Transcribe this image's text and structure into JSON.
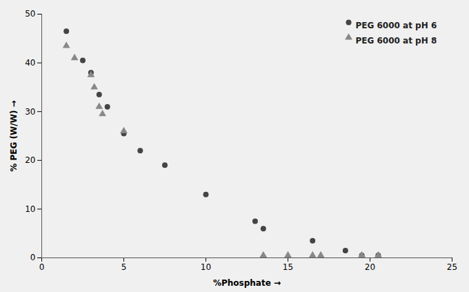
{
  "chart_data": {
    "type": "scatter",
    "xlabel": "%Phosphate",
    "ylabel": "% PEG (W/W)",
    "series": [
      {
        "name": "PEG 6000 at pH 6",
        "color": "#444444",
        "marker": "circle",
        "x": [
          1.5,
          2.5,
          3.0,
          3.5,
          4.0,
          5.0,
          6.0,
          7.5,
          10.0,
          13.0,
          13.5,
          16.5,
          18.5,
          19.5,
          20.5
        ],
        "values": [
          46.5,
          40.5,
          38.0,
          33.5,
          31.0,
          25.5,
          22.0,
          19.0,
          13.0,
          7.5,
          6.0,
          3.5,
          1.5,
          0.5,
          0.5
        ]
      },
      {
        "name": "PEG 6000 at pH 8",
        "color": "#888888",
        "marker": "triangle",
        "x": [
          1.5,
          2.0,
          3.0,
          3.2,
          3.5,
          3.7,
          5.0,
          13.5,
          15.0,
          16.5,
          17.0,
          19.5,
          20.5
        ],
        "values": [
          43.5,
          41.0,
          37.5,
          35.0,
          31.0,
          29.5,
          26.0,
          0.5,
          0.5,
          0.5,
          0.5,
          0.5,
          0.5
        ]
      }
    ],
    "xlim": [
      0,
      25
    ],
    "ylim": [
      0,
      50
    ],
    "xticks": [
      0,
      5,
      10,
      15,
      20,
      25
    ],
    "yticks": [
      0,
      10,
      20,
      30,
      40,
      50
    ],
    "grid": false,
    "legend": "upper right"
  }
}
